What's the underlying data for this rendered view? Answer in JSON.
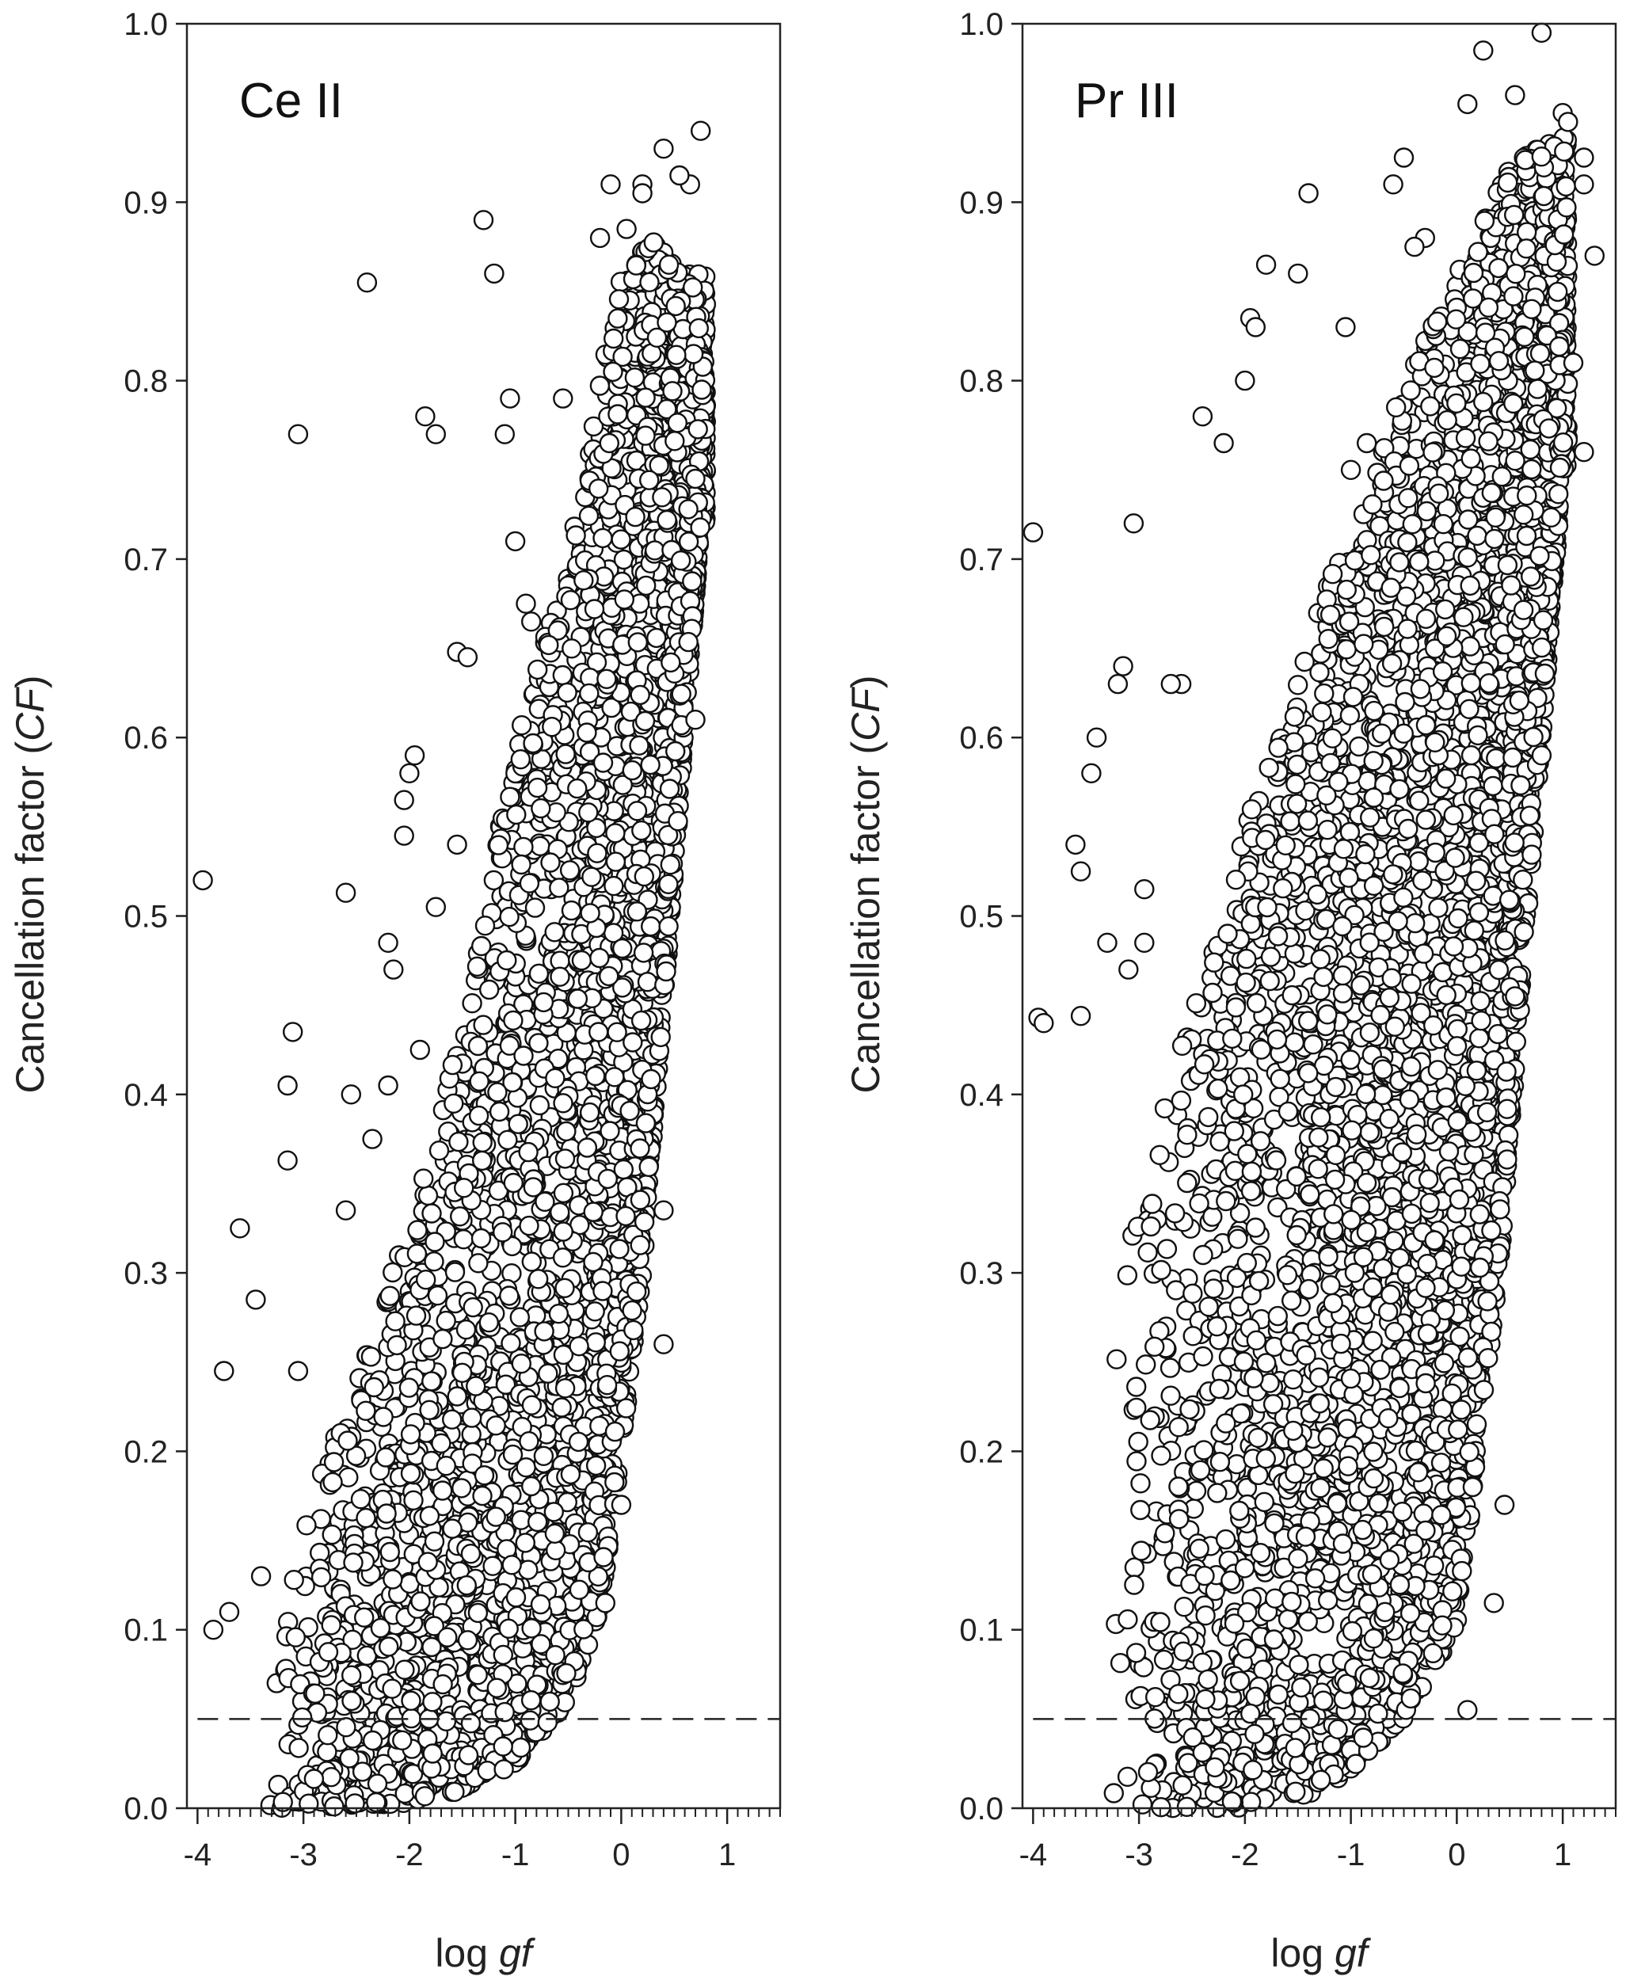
{
  "chart_data": [
    {
      "type": "scatter",
      "title": "Ce II",
      "xlabel": "log",
      "xlabel_italic": "gf",
      "ylabel": "Cancellation factor (",
      "ylabel_italic": "CF",
      "ylabel_end": ")",
      "xlim": [
        -4.1,
        1.5
      ],
      "ylim": [
        0.0,
        1.0
      ],
      "xticks": [
        "-4",
        "-3",
        "-2",
        "-1",
        "0",
        "1"
      ],
      "yticks": [
        "0.0",
        "0.1",
        "0.2",
        "0.3",
        "0.4",
        "0.5",
        "0.6",
        "0.7",
        "0.8",
        "0.9",
        "1.0"
      ],
      "reference_line": {
        "y": 0.05,
        "style": "dashed",
        "x_start": -4.0
      },
      "highlight_points": [
        [
          -3.95,
          0.52
        ],
        [
          -3.05,
          0.77
        ],
        [
          -2.4,
          0.855
        ],
        [
          -1.3,
          0.89
        ],
        [
          -1.2,
          0.86
        ],
        [
          -1.85,
          0.78
        ],
        [
          -1.75,
          0.77
        ],
        [
          -1.05,
          0.79
        ],
        [
          -1.1,
          0.77
        ],
        [
          -0.55,
          0.79
        ],
        [
          0.4,
          0.93
        ],
        [
          0.75,
          0.94
        ],
        [
          0.65,
          0.91
        ],
        [
          0.55,
          0.915
        ],
        [
          0.2,
          0.91
        ],
        [
          -0.1,
          0.91
        ],
        [
          0.2,
          0.905
        ],
        [
          0.05,
          0.885
        ],
        [
          -0.2,
          0.88
        ],
        [
          0.45,
          0.865
        ],
        [
          -3.6,
          0.325
        ],
        [
          -3.45,
          0.285
        ],
        [
          -3.1,
          0.435
        ],
        [
          -3.15,
          0.405
        ],
        [
          -3.15,
          0.363
        ],
        [
          -2.6,
          0.513
        ],
        [
          -2.2,
          0.485
        ],
        [
          -2.15,
          0.47
        ],
        [
          -3.75,
          0.245
        ],
        [
          -3.05,
          0.245
        ],
        [
          -3.85,
          0.1
        ],
        [
          -3.7,
          0.11
        ],
        [
          -3.4,
          0.13
        ],
        [
          -1.55,
          0.648
        ],
        [
          -1.45,
          0.645
        ],
        [
          -1.95,
          0.59
        ],
        [
          -2.0,
          0.58
        ],
        [
          -2.05,
          0.565
        ],
        [
          -2.05,
          0.545
        ],
        [
          0.4,
          0.335
        ],
        [
          0.4,
          0.26
        ],
        [
          0.7,
          0.61
        ],
        [
          0.7,
          0.745
        ],
        [
          0.0,
          0.17
        ],
        [
          -0.15,
          0.115
        ],
        [
          -1.0,
          0.71
        ],
        [
          -0.9,
          0.675
        ],
        [
          -0.85,
          0.665
        ],
        [
          -2.55,
          0.4
        ],
        [
          -2.2,
          0.405
        ],
        [
          -2.35,
          0.375
        ],
        [
          -2.6,
          0.335
        ],
        [
          -1.9,
          0.425
        ],
        [
          -1.55,
          0.54
        ],
        [
          -1.75,
          0.505
        ]
      ],
      "cloud_description_for_data": {
        "lower_envelope": [
          [
            -4.0,
            0.0
          ],
          [
            -3.0,
            0.0
          ],
          [
            -2.0,
            0.003
          ],
          [
            -1.5,
            0.01
          ],
          [
            -1.0,
            0.025
          ],
          [
            -0.5,
            0.06
          ],
          [
            -0.2,
            0.11
          ],
          [
            0.0,
            0.2
          ],
          [
            0.2,
            0.3
          ],
          [
            0.4,
            0.45
          ],
          [
            0.6,
            0.6
          ],
          [
            0.75,
            0.72
          ]
        ],
        "upper_envelope": [
          [
            -4.0,
            0.06
          ],
          [
            -3.5,
            0.09
          ],
          [
            -3.0,
            0.16
          ],
          [
            -2.5,
            0.24
          ],
          [
            -2.0,
            0.33
          ],
          [
            -1.5,
            0.44
          ],
          [
            -1.0,
            0.6
          ],
          [
            -0.5,
            0.7
          ],
          [
            -0.2,
            0.8
          ],
          [
            0.0,
            0.86
          ],
          [
            0.3,
            0.88
          ],
          [
            0.6,
            0.86
          ]
        ],
        "point_count": 3600,
        "seed": 11
      }
    },
    {
      "type": "scatter",
      "title": "Pr III",
      "xlabel": "log",
      "xlabel_italic": "gf",
      "ylabel": "Cancellation factor (",
      "ylabel_italic": "CF",
      "ylabel_end": ")",
      "xlim": [
        -4.1,
        1.5
      ],
      "ylim": [
        0.0,
        1.0
      ],
      "xticks": [
        "-4",
        "-3",
        "-2",
        "-1",
        "0",
        "1"
      ],
      "yticks": [
        "0.0",
        "0.1",
        "0.2",
        "0.3",
        "0.4",
        "0.5",
        "0.6",
        "0.7",
        "0.8",
        "0.9",
        "1.0"
      ],
      "reference_line": {
        "y": 0.05,
        "style": "dashed",
        "x_start": -4.0
      },
      "highlight_points": [
        [
          -4.0,
          0.715
        ],
        [
          -3.05,
          0.72
        ],
        [
          -1.4,
          0.905
        ],
        [
          -1.8,
          0.865
        ],
        [
          -1.5,
          0.86
        ],
        [
          -1.95,
          0.835
        ],
        [
          -1.9,
          0.83
        ],
        [
          -1.05,
          0.83
        ],
        [
          -2.0,
          0.8
        ],
        [
          -2.4,
          0.78
        ],
        [
          -2.2,
          0.765
        ],
        [
          0.8,
          0.995
        ],
        [
          0.25,
          0.985
        ],
        [
          0.55,
          0.96
        ],
        [
          0.1,
          0.955
        ],
        [
          1.0,
          0.95
        ],
        [
          1.05,
          0.945
        ],
        [
          1.2,
          0.925
        ],
        [
          1.2,
          0.91
        ],
        [
          1.3,
          0.87
        ],
        [
          1.2,
          0.76
        ],
        [
          1.1,
          0.81
        ],
        [
          0.8,
          0.59
        ],
        [
          0.5,
          0.46
        ],
        [
          0.55,
          0.455
        ],
        [
          0.45,
          0.17
        ],
        [
          0.35,
          0.115
        ],
        [
          0.15,
          0.18
        ],
        [
          0.1,
          0.055
        ],
        [
          -3.6,
          0.54
        ],
        [
          -3.55,
          0.525
        ],
        [
          -3.4,
          0.6
        ],
        [
          -3.45,
          0.58
        ],
        [
          -3.15,
          0.64
        ],
        [
          -3.2,
          0.63
        ],
        [
          -2.6,
          0.63
        ],
        [
          -2.7,
          0.63
        ],
        [
          -3.95,
          0.443
        ],
        [
          -3.9,
          0.44
        ],
        [
          -3.55,
          0.444
        ],
        [
          -3.3,
          0.485
        ],
        [
          -2.95,
          0.515
        ],
        [
          -2.95,
          0.485
        ],
        [
          -3.1,
          0.47
        ],
        [
          -1.0,
          0.75
        ],
        [
          -0.85,
          0.765
        ],
        [
          -0.5,
          0.925
        ],
        [
          -0.6,
          0.91
        ],
        [
          -0.3,
          0.88
        ],
        [
          -0.4,
          0.875
        ]
      ],
      "cloud_description_for_data": {
        "lower_envelope": [
          [
            -4.0,
            0.0
          ],
          [
            -3.0,
            0.0
          ],
          [
            -2.0,
            0.0
          ],
          [
            -1.5,
            0.005
          ],
          [
            -1.0,
            0.02
          ],
          [
            -0.5,
            0.05
          ],
          [
            0.0,
            0.1
          ],
          [
            0.2,
            0.2
          ],
          [
            0.4,
            0.3
          ],
          [
            0.6,
            0.45
          ],
          [
            0.8,
            0.6
          ],
          [
            1.0,
            0.75
          ]
        ],
        "upper_envelope": [
          [
            -4.0,
            0.16
          ],
          [
            -3.5,
            0.24
          ],
          [
            -3.0,
            0.34
          ],
          [
            -2.5,
            0.45
          ],
          [
            -2.0,
            0.55
          ],
          [
            -1.5,
            0.64
          ],
          [
            -1.0,
            0.72
          ],
          [
            -0.5,
            0.8
          ],
          [
            0.0,
            0.86
          ],
          [
            0.5,
            0.92
          ],
          [
            1.0,
            0.94
          ]
        ],
        "point_count": 4600,
        "seed": 29
      }
    }
  ]
}
